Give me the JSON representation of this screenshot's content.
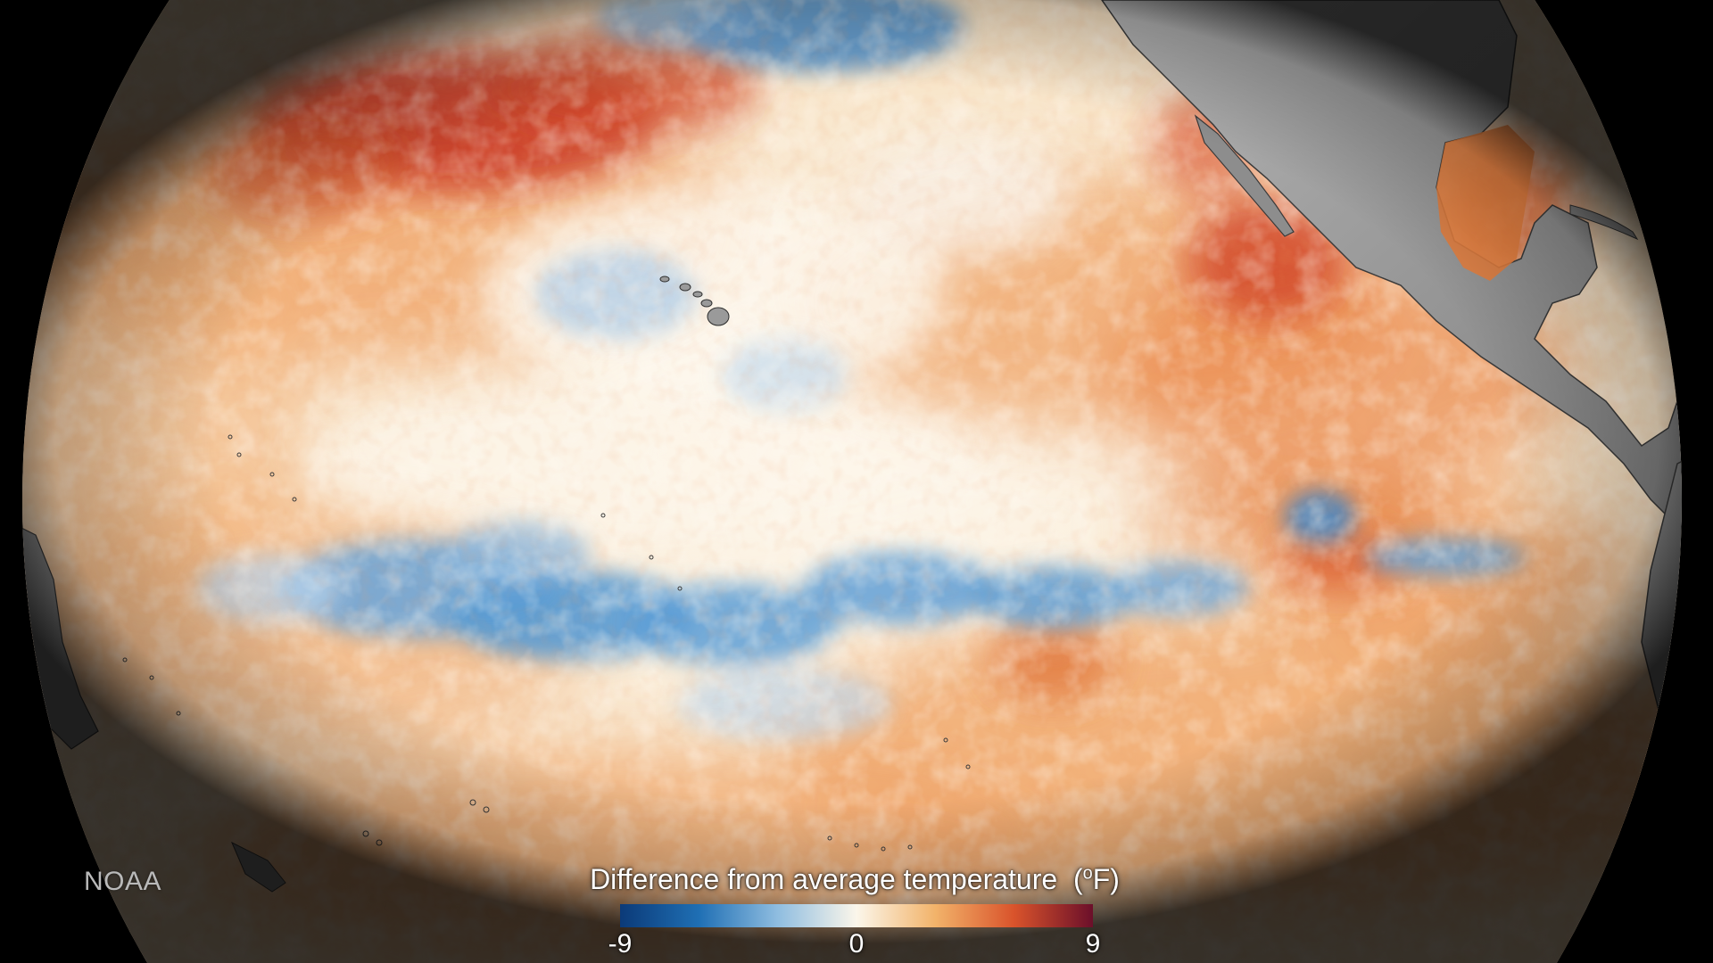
{
  "map": {
    "credit": "NOAA",
    "legend": {
      "title": "Difference from average temperature",
      "unit_prefix": "(",
      "unit_sup": "o",
      "unit_suffix": "F)",
      "ticks": [
        "-9",
        "0",
        "9"
      ],
      "min": -9,
      "max": 9,
      "color_stops": [
        {
          "value": -9,
          "color": "#0b3a78"
        },
        {
          "value": -6,
          "color": "#1f6fb4"
        },
        {
          "value": -3,
          "color": "#8fbde0"
        },
        {
          "value": 0,
          "color": "#fbf6ea"
        },
        {
          "value": 3,
          "color": "#f2b36a"
        },
        {
          "value": 6,
          "color": "#d9532b"
        },
        {
          "value": 9,
          "color": "#6b0f2a"
        }
      ]
    },
    "colors": {
      "space": "#000000",
      "ocean_neutral": "#fbf3e6",
      "warm": "#e98a4a",
      "hot": "#c7331f",
      "cool": "#5b9fd6",
      "land": "#9a9a9a"
    }
  }
}
